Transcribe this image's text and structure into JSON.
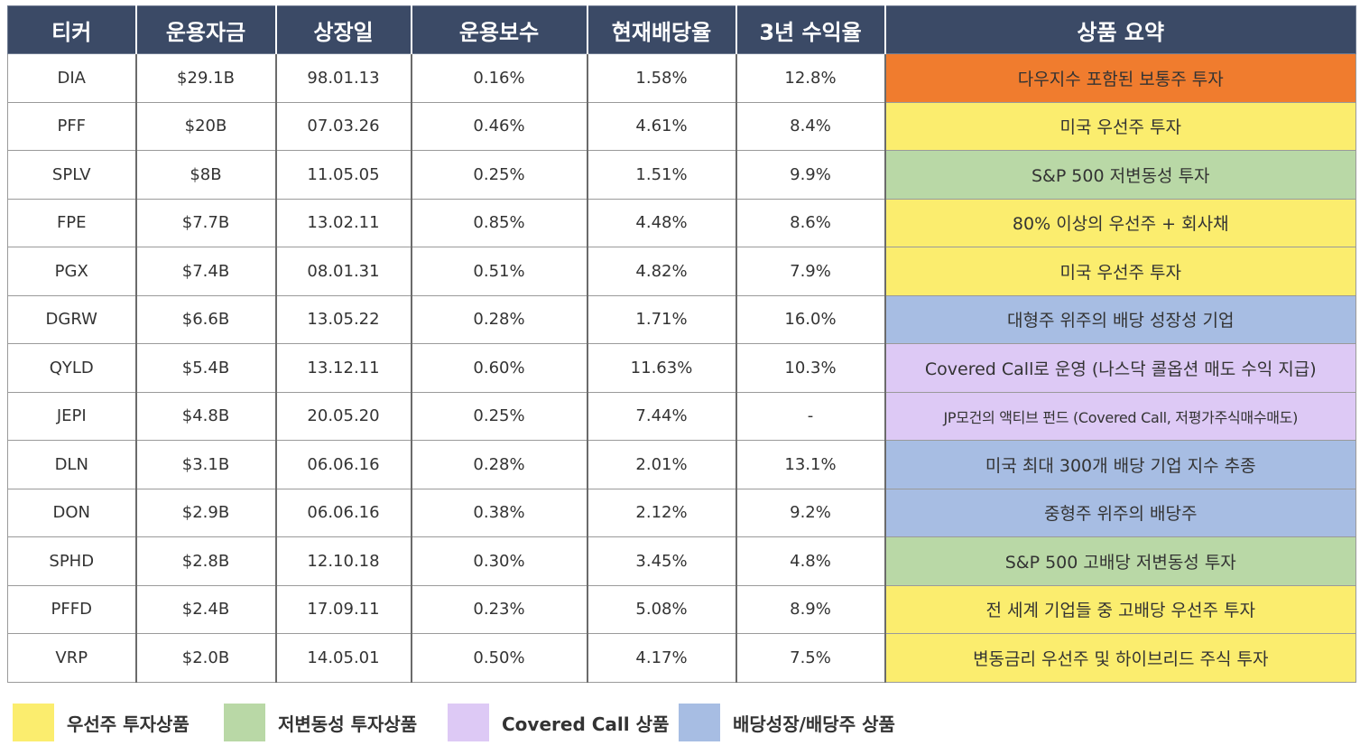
{
  "colors": {
    "header_bg": "#3b4a66",
    "dow": "#f07c2e",
    "preferred": "#fbed6e",
    "low_vol": "#b9d8a6",
    "covered_call": "#ddc9f5",
    "div_growth": "#a7bde3"
  },
  "table": {
    "headers": [
      "티커",
      "운용자금",
      "상장일",
      "운용보수",
      "현재배당율",
      "3년 수익율",
      "상품 요약"
    ],
    "rows": [
      {
        "ticker": "DIA",
        "aum": "$29.1B",
        "listed": "98.01.13",
        "fee": "0.16%",
        "yield": "1.58%",
        "ret3y": "12.8%",
        "summary": "다우지수 포함된 보통주 투자",
        "color": "#f07c2e"
      },
      {
        "ticker": "PFF",
        "aum": "$20B",
        "listed": "07.03.26",
        "fee": "0.46%",
        "yield": "4.61%",
        "ret3y": "8.4%",
        "summary": "미국 우선주 투자",
        "color": "#fbed6e"
      },
      {
        "ticker": "SPLV",
        "aum": "$8B",
        "listed": "11.05.05",
        "fee": "0.25%",
        "yield": "1.51%",
        "ret3y": "9.9%",
        "summary": "S&P 500 저변동성 투자",
        "color": "#b9d8a6"
      },
      {
        "ticker": "FPE",
        "aum": "$7.7B",
        "listed": "13.02.11",
        "fee": "0.85%",
        "yield": "4.48%",
        "ret3y": "8.6%",
        "summary": "80% 이상의 우선주 + 회사채",
        "color": "#fbed6e"
      },
      {
        "ticker": "PGX",
        "aum": "$7.4B",
        "listed": "08.01.31",
        "fee": "0.51%",
        "yield": "4.82%",
        "ret3y": "7.9%",
        "summary": "미국 우선주 투자",
        "color": "#fbed6e"
      },
      {
        "ticker": "DGRW",
        "aum": "$6.6B",
        "listed": "13.05.22",
        "fee": "0.28%",
        "yield": "1.71%",
        "ret3y": "16.0%",
        "summary": "대형주 위주의 배당 성장성 기업",
        "color": "#a7bde3"
      },
      {
        "ticker": "QYLD",
        "aum": "$5.4B",
        "listed": "13.12.11",
        "fee": "0.60%",
        "yield": "11.63%",
        "ret3y": "10.3%",
        "summary": "Covered Call로 운영 (나스닥 콜옵션 매도 수익 지급)",
        "color": "#ddc9f5"
      },
      {
        "ticker": "JEPI",
        "aum": "$4.8B",
        "listed": "20.05.20",
        "fee": "0.25%",
        "yield": "7.44%",
        "ret3y": "-",
        "summary": "JP모건의 액티브 펀드 (Covered Call, 저평가주식매수매도)",
        "color": "#ddc9f5"
      },
      {
        "ticker": "DLN",
        "aum": "$3.1B",
        "listed": "06.06.16",
        "fee": "0.28%",
        "yield": "2.01%",
        "ret3y": "13.1%",
        "summary": "미국 최대 300개 배당 기업 지수 추종",
        "color": "#a7bde3"
      },
      {
        "ticker": "DON",
        "aum": "$2.9B",
        "listed": "06.06.16",
        "fee": "0.38%",
        "yield": "2.12%",
        "ret3y": "9.2%",
        "summary": "중형주 위주의 배당주",
        "color": "#a7bde3"
      },
      {
        "ticker": "SPHD",
        "aum": "$2.8B",
        "listed": "12.10.18",
        "fee": "0.30%",
        "yield": "3.45%",
        "ret3y": "4.8%",
        "summary": "S&P 500 고배당 저변동성 투자",
        "color": "#b9d8a6"
      },
      {
        "ticker": "PFFD",
        "aum": "$2.4B",
        "listed": "17.09.11",
        "fee": "0.23%",
        "yield": "5.08%",
        "ret3y": "8.9%",
        "summary": "전 세계 기업들 중 고배당 우선주 투자",
        "color": "#fbed6e"
      },
      {
        "ticker": "VRP",
        "aum": "$2.0B",
        "listed": "14.05.01",
        "fee": "0.50%",
        "yield": "4.17%",
        "ret3y": "7.5%",
        "summary": "변동금리 우선주 및 하이브리드 주식 투자",
        "color": "#fbed6e"
      }
    ]
  },
  "legend": [
    {
      "label": "우선주 투자상품",
      "color": "#fbed6e"
    },
    {
      "label": "저변동성 투자상품",
      "color": "#b9d8a6"
    },
    {
      "label": "Covered Call 상품",
      "color": "#ddc9f5"
    },
    {
      "label": "배당성장/배당주 상품",
      "color": "#a7bde3"
    }
  ]
}
